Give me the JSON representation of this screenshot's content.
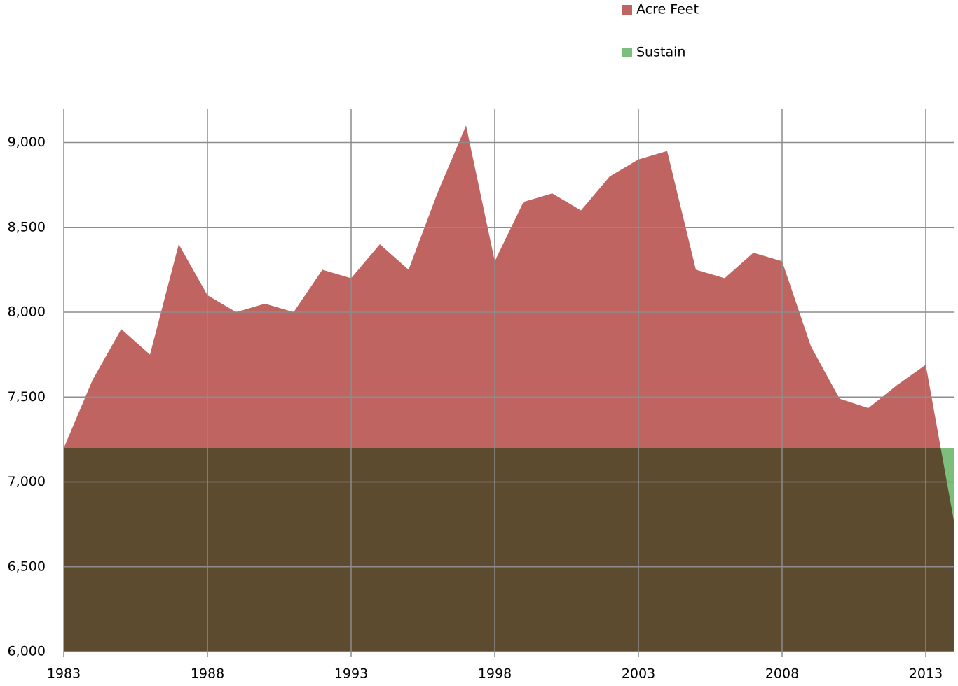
{
  "chart_data": {
    "type": "area",
    "x": [
      1983,
      1984,
      1985,
      1986,
      1987,
      1988,
      1989,
      1990,
      1991,
      1992,
      1993,
      1994,
      1995,
      1996,
      1997,
      1998,
      1999,
      2000,
      2001,
      2002,
      2003,
      2004,
      2005,
      2006,
      2007,
      2008,
      2009,
      2010,
      2011,
      2012,
      2013,
      2014
    ],
    "series": [
      {
        "name": "Acre Feet",
        "color": "#c06462",
        "values": [
          7200,
          7600,
          7900,
          7750,
          8400,
          8100,
          8000,
          8050,
          8000,
          8250,
          8200,
          8400,
          8250,
          8700,
          9100,
          8300,
          8650,
          8700,
          8600,
          8800,
          8900,
          8950,
          8250,
          8200,
          8350,
          8300,
          7800,
          7490,
          7435,
          7570,
          7690,
          6750
        ]
      },
      {
        "name": "Sustain",
        "color": "#7cbf7c",
        "values": [
          7200,
          7200,
          7200,
          7200,
          7200,
          7200,
          7200,
          7200,
          7200,
          7200,
          7200,
          7200,
          7200,
          7200,
          7200,
          7200,
          7200,
          7200,
          7200,
          7200,
          7200,
          7200,
          7200,
          7200,
          7200,
          7200,
          7200,
          7200,
          7200,
          7200,
          7200,
          7200
        ]
      }
    ],
    "xlim": [
      1983,
      2014
    ],
    "xticks": [
      1983,
      1988,
      1993,
      1998,
      2003,
      2008,
      2013
    ],
    "ylim": [
      6000,
      9200
    ],
    "yticks": [
      {
        "value": 6000,
        "label": "6,000"
      },
      {
        "value": 6500,
        "label": "6,500"
      },
      {
        "value": 7000,
        "label": "7,000"
      },
      {
        "value": 7500,
        "label": "7,500"
      },
      {
        "value": 8000,
        "label": "8,000"
      },
      {
        "value": 8500,
        "label": "8,500"
      },
      {
        "value": 9000,
        "label": "9,000"
      }
    ],
    "grid": true,
    "legend": "top-right"
  }
}
